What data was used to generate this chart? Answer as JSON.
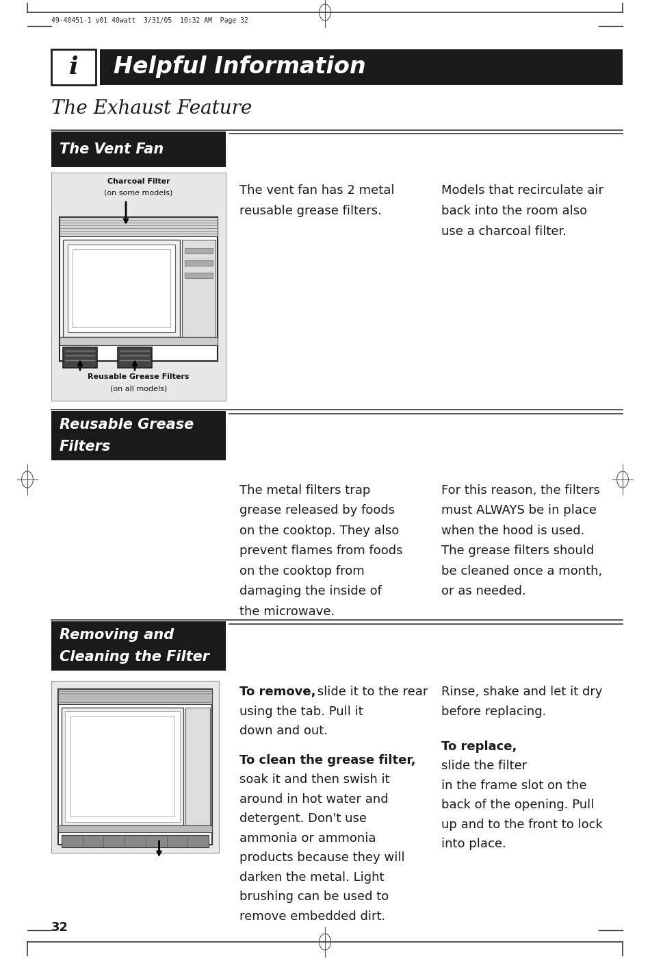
{
  "background_color": "#ffffff",
  "page_header_text": "49-40451-1 v01 40watt  3/31/05  10:32 AM  Page 32",
  "header_bg": "#1a1a1a",
  "header_title": "Helpful Information",
  "section1_title": "The Exhaust Feature",
  "section2_label": "The Vent Fan",
  "section2_col1_label1": "Charcoal Filter",
  "section2_col1_label2": "(on some models)",
  "section2_col1_label3": "Reusable Grease Filters",
  "section2_col1_label4": "(on all models)",
  "section2_col2_line1": "The vent fan has 2 metal",
  "section2_col2_line2": "reusable grease filters.",
  "section2_col3_line1": "Models that recirculate air",
  "section2_col3_line2": "back into the room also",
  "section2_col3_line3": "use a charcoal filter.",
  "section3_label_line1": "Reusable Grease",
  "section3_label_line2": "Filters",
  "section3_col2_lines": [
    "The metal filters trap",
    "grease released by foods",
    "on the cooktop. They also",
    "prevent flames from foods",
    "on the cooktop from",
    "damaging the inside of",
    "the microwave."
  ],
  "section3_col3_lines": [
    "For this reason, the filters",
    "must ALWAYS be in place",
    "when the hood is used.",
    "The grease filters should",
    "be cleaned once a month,",
    "or as needed."
  ],
  "section4_label_line1": "Removing and",
  "section4_label_line2": "Cleaning the Filter",
  "section4_col2_p1_bold": "To remove,",
  "section4_col2_p1_rest": " slide it to the rear",
  "section4_col2_p1_line2": "using the tab. Pull it",
  "section4_col2_p1_line3": "down and out.",
  "section4_col2_p2_bold": "To clean the grease filter,",
  "section4_col2_p2_lines": [
    "soak it and then swish it",
    "around in hot water and",
    "detergent. Don't use",
    "ammonia or ammonia",
    "products because they will",
    "darken the metal. Light",
    "brushing can be used to",
    "remove embedded dirt."
  ],
  "section4_col3_line1": "Rinse, shake and let it dry",
  "section4_col3_line2": "before replacing.",
  "section4_col3_bold2": "To replace,",
  "section4_col3_p2_lines": [
    "slide the filter",
    "in the frame slot on the",
    "back of the opening. Pull",
    "up and to the front to lock",
    "into place."
  ],
  "page_number": "32"
}
